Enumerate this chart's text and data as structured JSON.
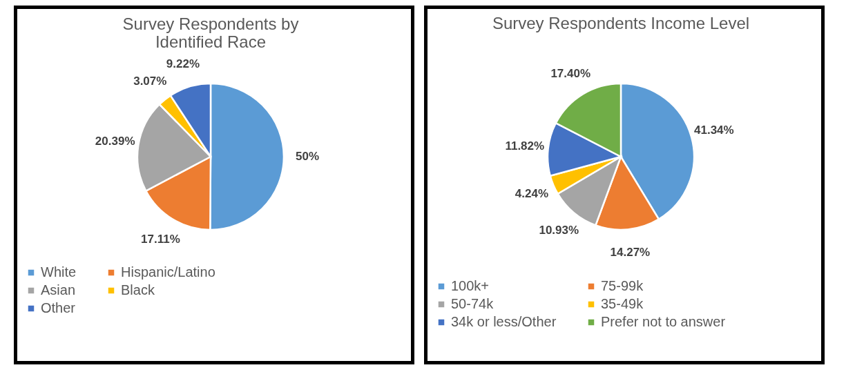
{
  "chart_data": [
    {
      "type": "pie",
      "title": "Survey Respondents by Identified Race",
      "categories": [
        "White",
        "Hispanic/Latino",
        "Asian",
        "Black",
        "Other"
      ],
      "values": [
        50,
        17.11,
        20.39,
        3.07,
        9.22
      ],
      "colors": [
        "#5b9bd5",
        "#ed7d31",
        "#a5a5a5",
        "#ffc000",
        "#4472c4"
      ],
      "value_labels": [
        "50%",
        "17.11%",
        "20.39%",
        "3.07%",
        "9.22%"
      ],
      "legend": "bottom"
    },
    {
      "type": "pie",
      "title": "Survey Respondents Income Level",
      "categories": [
        "100k+",
        "75-99k",
        "50-74k",
        "35-49k",
        "34k or less/Other",
        "Prefer not to answer"
      ],
      "values": [
        41.34,
        14.27,
        10.93,
        4.24,
        11.82,
        17.4
      ],
      "colors": [
        "#5b9bd5",
        "#ed7d31",
        "#a5a5a5",
        "#ffc000",
        "#4472c4",
        "#70ad47"
      ],
      "value_labels": [
        "41.34%",
        "14.27%",
        "10.93%",
        "4.24%",
        "11.82%",
        "17.40%"
      ],
      "legend": "bottom"
    }
  ]
}
